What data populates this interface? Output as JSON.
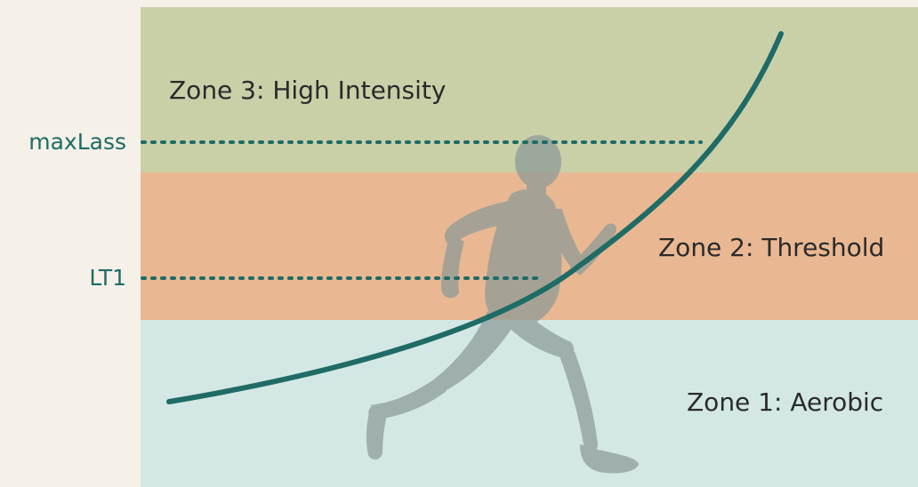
{
  "zones": [
    {
      "label": "Zone 3: High Intensity",
      "color": "#c9d0a8"
    },
    {
      "label": "Zone 2: Threshold",
      "color": "#e9b892"
    },
    {
      "label": "Zone 1: Aerobic",
      "color": "#d3e8e4"
    }
  ],
  "thresholds": [
    {
      "label": "maxLass"
    },
    {
      "label": "LT1"
    }
  ],
  "colors": {
    "curve": "#1f6b66",
    "threshold_line": "#1f6b66",
    "runner": "#8b9a97",
    "background": "#f5f1e8",
    "axis_label": "#1f6b66"
  },
  "icons": {
    "runner": "runner-silhouette-icon"
  }
}
